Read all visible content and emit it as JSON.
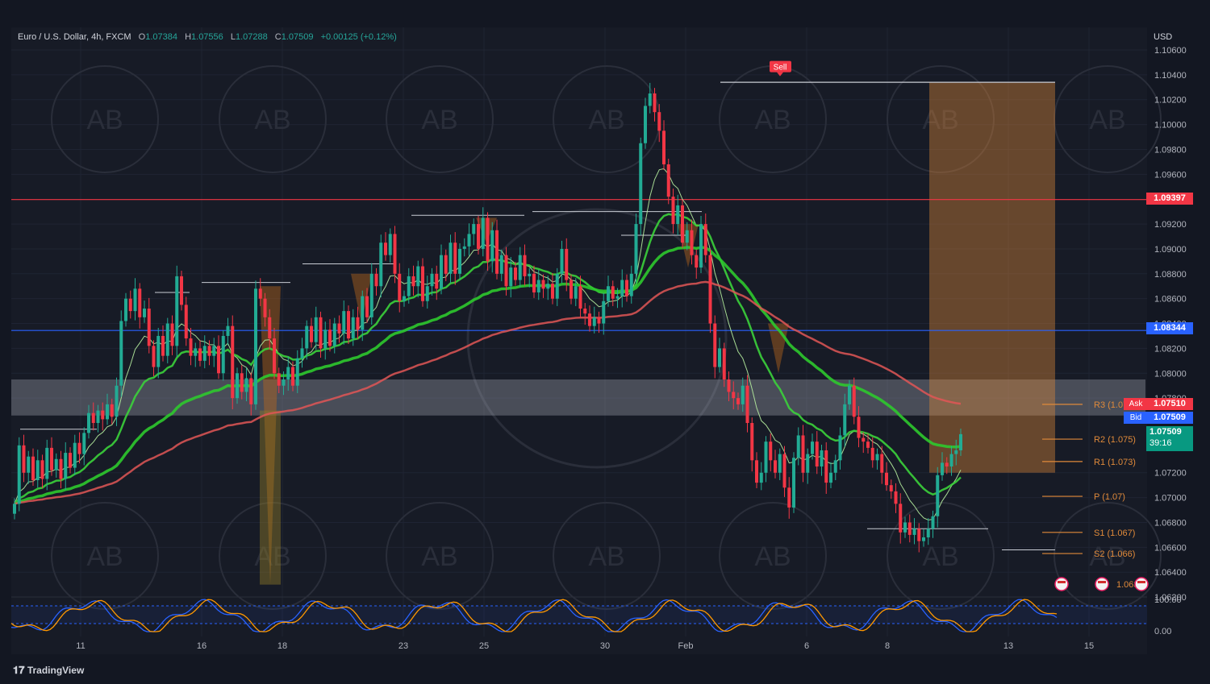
{
  "header": {
    "symbol": "Euro / U.S. Dollar, 4h, FXCM",
    "o_label": "O",
    "o": "1.07384",
    "h_label": "H",
    "h": "1.07556",
    "l_label": "L",
    "l": "1.07288",
    "c_label": "C",
    "c": "1.07509",
    "change": "+0.00125 (+0.12%)"
  },
  "currency": "USD",
  "brand": "TradingView",
  "watermark": "AB",
  "signal_label": "Sell",
  "tags": {
    "resistance": "1.09397",
    "support": "1.08344",
    "ask_label": "Ask",
    "ask": "1.07510",
    "bid_label": "Bid",
    "bid": "1.07509",
    "last": "1.07509",
    "countdown": "39:16"
  },
  "pivots": [
    {
      "label": "R3 (1.07...",
      "value": 1.0775
    },
    {
      "label": "R2 (1.075)",
      "value": 1.0747
    },
    {
      "label": "R1 (1.073)",
      "value": 1.0729
    },
    {
      "label": "P (1.07)",
      "value": 1.0701
    },
    {
      "label": "S1 (1.067)",
      "value": 1.0672
    },
    {
      "label": "S2 (1.066)",
      "value": 1.0655
    }
  ],
  "event_label": "1.063",
  "colors": {
    "bg": "#131722",
    "up": "#22ab94",
    "down": "#f23645",
    "ema_green": "#3bd23b",
    "ema_red": "#d32f2f",
    "resistance": "#f23645",
    "support": "#2962ff",
    "zone": "#b4b8c4",
    "orange": "#e08a3a"
  },
  "chart_data": {
    "type": "candlestick",
    "title": "Euro / U.S. Dollar, 4h, FXCM",
    "ylabel": "USD",
    "ylim": [
      1.0608,
      1.1072
    ],
    "yticks": [
      "1.10600",
      "1.10400",
      "1.10200",
      "1.10000",
      "1.09800",
      "1.09600",
      "1.09200",
      "1.09000",
      "1.08800",
      "1.08600",
      "1.08400",
      "1.08200",
      "1.08000",
      "1.07800",
      "1.07200",
      "1.07000",
      "1.06800",
      "1.06600",
      "1.06400",
      "1.06200"
    ],
    "xticks": [
      "11",
      "16",
      "18",
      "23",
      "25",
      "30",
      "Feb",
      "6",
      "8",
      "13",
      "15"
    ],
    "closes": [
      1.0695,
      1.0742,
      1.072,
      1.0733,
      1.0714,
      1.073,
      1.0715,
      1.074,
      1.0722,
      1.0731,
      1.0715,
      1.0736,
      1.0724,
      1.0744,
      1.0735,
      1.0752,
      1.0768,
      1.076,
      1.077,
      1.0763,
      1.0775,
      1.0765,
      1.079,
      1.0842,
      1.086,
      1.085,
      1.0868,
      1.0845,
      1.0852,
      1.0822,
      1.0805,
      1.083,
      1.0814,
      1.084,
      1.0822,
      1.0878,
      1.0855,
      1.0828,
      1.0814,
      1.082,
      1.081,
      1.0822,
      1.0814,
      1.0822,
      1.08,
      1.083,
      1.0838,
      1.078,
      1.08,
      1.0785,
      1.0796,
      1.0775,
      1.0868,
      1.086,
      1.0845,
      1.0828,
      1.08,
      1.079,
      1.0795,
      1.0805,
      1.079,
      1.0812,
      1.082,
      1.0838,
      1.0825,
      1.0845,
      1.082,
      1.0835,
      1.0822,
      1.084,
      1.0832,
      1.085,
      1.0828,
      1.0845,
      1.0835,
      1.0862,
      1.0845,
      1.088,
      1.087,
      1.0905,
      1.0895,
      1.0912,
      1.088,
      1.0858,
      1.0862,
      1.0878,
      1.087,
      1.0886,
      1.0858,
      1.087,
      1.088,
      1.0868,
      1.0895,
      1.088,
      1.0905,
      1.088,
      1.09,
      1.0902,
      1.0912,
      1.092,
      1.09,
      1.0925,
      1.089,
      1.0915,
      1.088,
      1.0895,
      1.087,
      1.0885,
      1.0875,
      1.0895,
      1.0878,
      1.088,
      1.0865,
      1.0875,
      1.0868,
      1.0872,
      1.086,
      1.088,
      1.09,
      1.0875,
      1.086,
      1.087,
      1.0852,
      1.0848,
      1.0838,
      1.0845,
      1.084,
      1.0858,
      1.087,
      1.086,
      1.0862,
      1.0875,
      1.0862,
      1.088,
      1.092,
      1.0985,
      1.1015,
      1.1025,
      1.101,
      1.0995,
      1.0968,
      1.0942,
      1.092,
      1.0935,
      1.0905,
      1.0915,
      1.0895,
      1.0885,
      1.092,
      1.0895,
      1.084,
      1.0805,
      1.082,
      1.0795,
      1.0785,
      1.078,
      1.0775,
      1.079,
      1.076,
      1.073,
      1.0712,
      1.072,
      1.0745,
      1.073,
      1.072,
      1.0735,
      1.0708,
      1.0692,
      1.0732,
      1.075,
      1.072,
      1.0735,
      1.0745,
      1.0725,
      1.0738,
      1.0712,
      1.072,
      1.073,
      1.075,
      1.0775,
      1.079,
      1.0765,
      1.0748,
      1.0745,
      1.074,
      1.073,
      1.0735,
      1.072,
      1.071,
      1.0705,
      1.0695,
      1.0672,
      1.068,
      1.067,
      1.0675,
      1.0665,
      1.0668,
      1.0675,
      1.0685,
      1.0718,
      1.0728,
      1.0725,
      1.0735,
      1.0738,
      1.0751
    ]
  }
}
